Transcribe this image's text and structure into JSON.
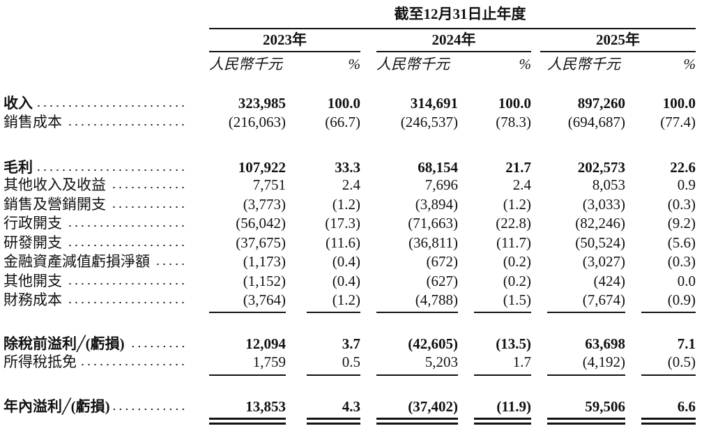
{
  "header": {
    "period": "截至12月31日止年度",
    "years": [
      "2023年",
      "2024年",
      "2025年"
    ],
    "units": [
      "人民幣千元",
      "%",
      "人民幣千元",
      "%",
      "人民幣千元",
      "%"
    ]
  },
  "table": {
    "rows": [
      {
        "label": "收入",
        "bold": true,
        "cells": [
          "323,985",
          "100.0",
          "314,691",
          "100.0",
          "897,260",
          "100.0"
        ]
      },
      {
        "label": "銷售成本",
        "bold": false,
        "cells": [
          "(216,063)",
          "(66.7)",
          "(246,537)",
          "(78.3)",
          "(694,687)",
          "(77.4)"
        ]
      },
      {
        "label": "毛利",
        "bold": true,
        "cells": [
          "107,922",
          "33.3",
          "68,154",
          "21.7",
          "202,573",
          "22.6"
        ]
      },
      {
        "label": "其他收入及收益",
        "bold": false,
        "cells": [
          "7,751",
          "2.4",
          "7,696",
          "2.4",
          "8,053",
          "0.9"
        ]
      },
      {
        "label": "銷售及營銷開支",
        "bold": false,
        "cells": [
          "(3,773)",
          "(1.2)",
          "(3,894)",
          "(1.2)",
          "(3,033)",
          "(0.3)"
        ]
      },
      {
        "label": "行政開支",
        "bold": false,
        "cells": [
          "(56,042)",
          "(17.3)",
          "(71,663)",
          "(22.8)",
          "(82,246)",
          "(9.2)"
        ]
      },
      {
        "label": "研發開支",
        "bold": false,
        "cells": [
          "(37,675)",
          "(11.6)",
          "(36,811)",
          "(11.7)",
          "(50,524)",
          "(5.6)"
        ]
      },
      {
        "label": "金融資產減值虧損淨額",
        "bold": false,
        "cells": [
          "(1,173)",
          "(0.4)",
          "(672)",
          "(0.2)",
          "(3,027)",
          "(0.3)"
        ]
      },
      {
        "label": "其他開支",
        "bold": false,
        "cells": [
          "(1,152)",
          "(0.4)",
          "(627)",
          "(0.2)",
          "(424)",
          "0.0"
        ]
      },
      {
        "label": "財務成本",
        "bold": false,
        "cells": [
          "(3,764)",
          "(1.2)",
          "(4,788)",
          "(1.5)",
          "(7,674)",
          "(0.9)"
        ]
      },
      {
        "label": "除稅前溢利╱(虧損)",
        "bold": true,
        "cells": [
          "12,094",
          "3.7",
          "(42,605)",
          "(13.5)",
          "63,698",
          "7.1"
        ]
      },
      {
        "label": "所得稅抵免",
        "bold": false,
        "cells": [
          "1,759",
          "0.5",
          "5,203",
          "1.7",
          "(4,192)",
          "(0.5)"
        ]
      },
      {
        "label": "年內溢利╱(虧損)",
        "bold": true,
        "cells": [
          "13,853",
          "4.3",
          "(37,402)",
          "(11.9)",
          "59,506",
          "6.6"
        ]
      }
    ]
  }
}
